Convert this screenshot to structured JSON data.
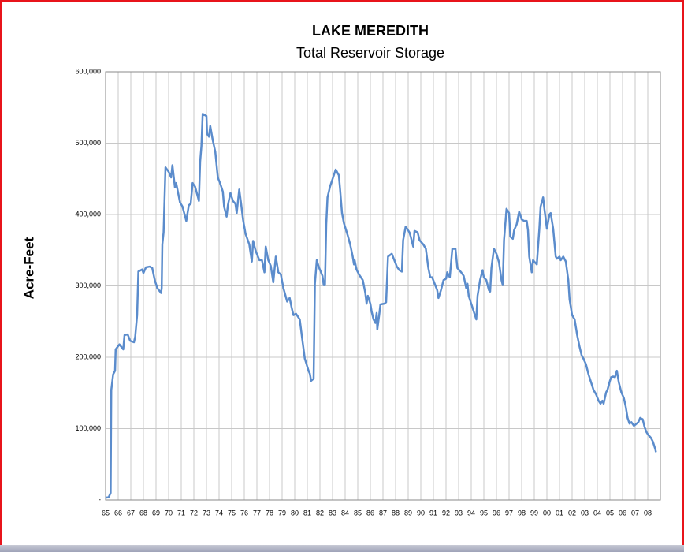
{
  "chart_data": {
    "type": "line",
    "title": "LAKE MEREDITH",
    "subtitle": "Total Reservoir Storage",
    "ylabel": "Acre-Feet",
    "xlim": [
      1965,
      2009
    ],
    "xticks": [
      {
        "value": 1965,
        "label": "65"
      },
      {
        "value": 1966,
        "label": "66"
      },
      {
        "value": 1967,
        "label": "67"
      },
      {
        "value": 1968,
        "label": "68"
      },
      {
        "value": 1969,
        "label": "69"
      },
      {
        "value": 1970,
        "label": "70"
      },
      {
        "value": 1971,
        "label": "71"
      },
      {
        "value": 1972,
        "label": "72"
      },
      {
        "value": 1973,
        "label": "73"
      },
      {
        "value": 1974,
        "label": "74"
      },
      {
        "value": 1975,
        "label": "75"
      },
      {
        "value": 1976,
        "label": "76"
      },
      {
        "value": 1977,
        "label": "77"
      },
      {
        "value": 1978,
        "label": "78"
      },
      {
        "value": 1979,
        "label": "79"
      },
      {
        "value": 1980,
        "label": "80"
      },
      {
        "value": 1981,
        "label": "81"
      },
      {
        "value": 1982,
        "label": "82"
      },
      {
        "value": 1983,
        "label": "83"
      },
      {
        "value": 1984,
        "label": "84"
      },
      {
        "value": 1985,
        "label": "85"
      },
      {
        "value": 1986,
        "label": "86"
      },
      {
        "value": 1987,
        "label": "87"
      },
      {
        "value": 1988,
        "label": "88"
      },
      {
        "value": 1989,
        "label": "89"
      },
      {
        "value": 1990,
        "label": "90"
      },
      {
        "value": 1991,
        "label": "91"
      },
      {
        "value": 1992,
        "label": "92"
      },
      {
        "value": 1993,
        "label": "93"
      },
      {
        "value": 1994,
        "label": "94"
      },
      {
        "value": 1995,
        "label": "95"
      },
      {
        "value": 1996,
        "label": "96"
      },
      {
        "value": 1997,
        "label": "97"
      },
      {
        "value": 1998,
        "label": "98"
      },
      {
        "value": 1999,
        "label": "99"
      },
      {
        "value": 2000,
        "label": "00"
      },
      {
        "value": 2001,
        "label": "01"
      },
      {
        "value": 2002,
        "label": "02"
      },
      {
        "value": 2003,
        "label": "03"
      },
      {
        "value": 2004,
        "label": "04"
      },
      {
        "value": 2005,
        "label": "05"
      },
      {
        "value": 2006,
        "label": "06"
      },
      {
        "value": 2007,
        "label": "07"
      },
      {
        "value": 2008,
        "label": "08"
      }
    ],
    "ylim": [
      0,
      600000
    ],
    "yticks": [
      {
        "value": 0,
        "label": "-"
      },
      {
        "value": 100000,
        "label": "100,000"
      },
      {
        "value": 200000,
        "label": "200,000"
      },
      {
        "value": 300000,
        "label": "300,000"
      },
      {
        "value": 400000,
        "label": "400,000"
      },
      {
        "value": 500000,
        "label": "500,000"
      },
      {
        "value": 600000,
        "label": "600,000"
      }
    ],
    "grid": true,
    "x": [
      1965.0,
      1965.25,
      1965.4,
      1965.45,
      1965.6,
      1965.75,
      1965.8,
      1966.1,
      1966.4,
      1966.5,
      1966.75,
      1966.95,
      1967.25,
      1967.35,
      1967.5,
      1967.6,
      1967.9,
      1968.0,
      1968.2,
      1968.5,
      1968.7,
      1968.9,
      1969.1,
      1969.4,
      1969.45,
      1969.5,
      1969.6,
      1969.75,
      1970.0,
      1970.2,
      1970.3,
      1970.5,
      1970.6,
      1970.9,
      1971.1,
      1971.4,
      1971.6,
      1971.75,
      1971.9,
      1972.1,
      1972.4,
      1972.5,
      1972.6,
      1972.7,
      1973.0,
      1973.05,
      1973.2,
      1973.3,
      1973.5,
      1973.7,
      1973.9,
      1974.1,
      1974.3,
      1974.4,
      1974.6,
      1974.7,
      1974.9,
      1975.1,
      1975.3,
      1975.4,
      1975.6,
      1975.75,
      1975.9,
      1976.1,
      1976.4,
      1976.6,
      1976.7,
      1976.9,
      1977.2,
      1977.4,
      1977.6,
      1977.7,
      1977.9,
      1978.1,
      1978.3,
      1978.5,
      1978.7,
      1978.9,
      1979.1,
      1979.4,
      1979.6,
      1979.75,
      1979.9,
      1980.1,
      1980.4,
      1980.6,
      1980.8,
      1981.1,
      1981.2,
      1981.3,
      1981.5,
      1981.6,
      1981.75,
      1981.9,
      1982.2,
      1982.3,
      1982.4,
      1982.5,
      1982.6,
      1982.8,
      1983.1,
      1983.25,
      1983.5,
      1983.6,
      1983.75,
      1983.9,
      1984.2,
      1984.4,
      1984.6,
      1984.7,
      1984.75,
      1984.9,
      1985.1,
      1985.4,
      1985.6,
      1985.7,
      1985.8,
      1986.0,
      1986.1,
      1986.25,
      1986.4,
      1986.5,
      1986.55,
      1986.7,
      1986.8,
      1987.1,
      1987.25,
      1987.4,
      1987.7,
      1987.9,
      1988.1,
      1988.3,
      1988.5,
      1988.6,
      1988.8,
      1989.1,
      1989.2,
      1989.4,
      1989.5,
      1989.75,
      1989.9,
      1990.2,
      1990.4,
      1990.6,
      1990.75,
      1990.9,
      1991.1,
      1991.3,
      1991.4,
      1991.6,
      1991.8,
      1992.0,
      1992.1,
      1992.3,
      1992.5,
      1992.75,
      1992.9,
      1993.2,
      1993.4,
      1993.6,
      1993.7,
      1993.8,
      1994.0,
      1994.2,
      1994.4,
      1994.5,
      1994.7,
      1994.9,
      1995.0,
      1995.2,
      1995.4,
      1995.5,
      1995.6,
      1995.8,
      1996.0,
      1996.2,
      1996.4,
      1996.5,
      1996.6,
      1996.8,
      1997.0,
      1997.1,
      1997.3,
      1997.4,
      1997.6,
      1997.8,
      1998.0,
      1998.2,
      1998.4,
      1998.5,
      1998.6,
      1998.8,
      1998.9,
      1999.2,
      1999.4,
      1999.5,
      1999.7,
      1999.8,
      2000.0,
      2000.2,
      2000.3,
      2000.5,
      2000.7,
      2000.8,
      2001.0,
      2001.1,
      2001.3,
      2001.5,
      2001.7,
      2001.8,
      2002.0,
      2002.2,
      2002.4,
      2002.6,
      2002.75,
      2002.9,
      2003.1,
      2003.3,
      2003.5,
      2003.7,
      2003.9,
      2004.1,
      2004.25,
      2004.4,
      2004.5,
      2004.7,
      2004.8,
      2005.0,
      2005.1,
      2005.25,
      2005.4,
      2005.55,
      2005.7,
      2005.9,
      2006.1,
      2006.25,
      2006.4,
      2006.55,
      2006.7,
      2006.9,
      2007.05,
      2007.25,
      2007.4,
      2007.6,
      2007.75,
      2007.9,
      2008.05,
      2008.25,
      2008.4,
      2008.6,
      2008.65
    ],
    "series": [
      {
        "name": "Total Reservoir Storage",
        "color": "#5b8ccc",
        "values": [
          3000,
          4000,
          10000,
          154000,
          176000,
          181000,
          211000,
          218000,
          211000,
          231000,
          232000,
          223000,
          221000,
          229000,
          259000,
          320000,
          323000,
          318000,
          326000,
          327000,
          325000,
          308000,
          297000,
          290000,
          297000,
          358000,
          375000,
          466000,
          460000,
          452000,
          469000,
          438000,
          444000,
          417000,
          411000,
          391000,
          413000,
          415000,
          444000,
          439000,
          419000,
          474000,
          496000,
          541000,
          538000,
          513000,
          509000,
          524000,
          504000,
          488000,
          452000,
          443000,
          432000,
          411000,
          397000,
          413000,
          430000,
          419000,
          415000,
          402000,
          435000,
          415000,
          393000,
          373000,
          358000,
          334000,
          363000,
          349000,
          336000,
          336000,
          319000,
          355000,
          336000,
          328000,
          305000,
          341000,
          319000,
          316000,
          297000,
          278000,
          283000,
          270000,
          259000,
          261000,
          253000,
          225000,
          198000,
          181000,
          177000,
          167000,
          170000,
          303000,
          336000,
          327000,
          314000,
          301000,
          301000,
          386000,
          424000,
          439000,
          455000,
          463000,
          455000,
          435000,
          402000,
          388000,
          371000,
          358000,
          341000,
          330000,
          336000,
          323000,
          316000,
          308000,
          290000,
          275000,
          286000,
          275000,
          264000,
          253000,
          248000,
          262000,
          239000,
          259000,
          274000,
          275000,
          277000,
          341000,
          345000,
          336000,
          327000,
          322000,
          320000,
          364000,
          383000,
          375000,
          369000,
          355000,
          377000,
          375000,
          364000,
          358000,
          352000,
          325000,
          312000,
          312000,
          303000,
          294000,
          283000,
          294000,
          308000,
          310000,
          319000,
          312000,
          352000,
          352000,
          325000,
          319000,
          314000,
          297000,
          303000,
          286000,
          275000,
          264000,
          253000,
          286000,
          308000,
          322000,
          312000,
          308000,
          294000,
          292000,
          325000,
          352000,
          345000,
          333000,
          308000,
          301000,
          364000,
          408000,
          402000,
          369000,
          366000,
          378000,
          386000,
          404000,
          393000,
          391000,
          391000,
          378000,
          341000,
          319000,
          336000,
          330000,
          380000,
          411000,
          424000,
          408000,
          380000,
          400000,
          402000,
          380000,
          341000,
          338000,
          341000,
          336000,
          341000,
          334000,
          308000,
          281000,
          259000,
          253000,
          231000,
          214000,
          203000,
          198000,
          190000,
          176000,
          165000,
          154000,
          148000,
          139000,
          135000,
          139000,
          135000,
          151000,
          154000,
          167000,
          172000,
          173000,
          172000,
          181000,
          165000,
          151000,
          143000,
          131000,
          115000,
          107000,
          109000,
          104000,
          106000,
          109000,
          115000,
          113000,
          102000,
          95000,
          91000,
          87000,
          82000,
          71000,
          67000
        ]
      }
    ]
  }
}
